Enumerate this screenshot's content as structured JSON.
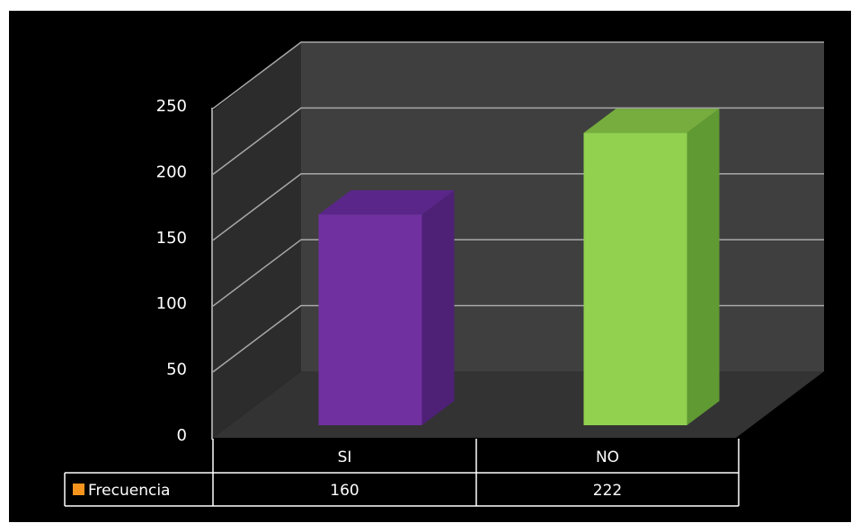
{
  "chart_data": {
    "type": "bar",
    "style": "3d-column-with-data-table",
    "categories": [
      "SI",
      "NO"
    ],
    "series": [
      {
        "name": "Frecuencia",
        "values": [
          160,
          222
        ]
      }
    ],
    "ylim": [
      0,
      250
    ],
    "y_ticks": [
      0,
      50,
      100,
      150,
      200,
      250
    ],
    "grid": true,
    "legend": "data-table-left",
    "colors": {
      "background": "#000000",
      "back_wall": "#3f3f3f",
      "side_wall": "#2c2c2c",
      "floor": "#333333",
      "gridline": "#a8a8a8",
      "bar_si_front": "#7030a0",
      "bar_si_side": "#4e2176",
      "bar_si_top": "#5a268a",
      "bar_no_front": "#92d050",
      "bar_no_side": "#5f9a33",
      "bar_no_top": "#76ad3e",
      "legend_key": "#f7941e"
    }
  }
}
